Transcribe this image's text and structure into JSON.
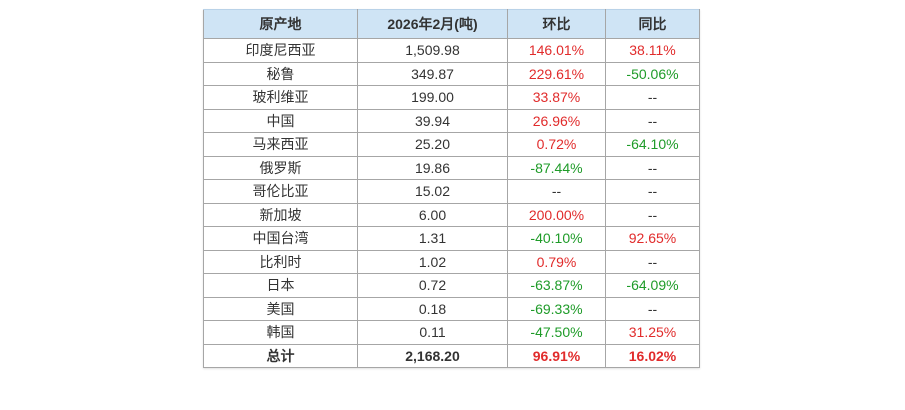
{
  "colors": {
    "header_bg": "#cfe4f5",
    "border": "#a6a6a6",
    "increase_red": "#e12b2b",
    "decrease_green": "#1e9b28",
    "text": "#333333",
    "page_bg": "#ffffff"
  },
  "chart_data": {
    "type": "table",
    "title": "",
    "columns": [
      "原产地",
      "2026年2月(吨)",
      "环比",
      "同比"
    ],
    "rows": [
      {
        "origin": "印度尼西亚",
        "amount": "1,509.98",
        "mom": "146.01%",
        "mom_trend": "up",
        "yoy": "38.11%",
        "yoy_trend": "up",
        "is_total": false
      },
      {
        "origin": "秘鲁",
        "amount": "349.87",
        "mom": "229.61%",
        "mom_trend": "up",
        "yoy": "-50.06%",
        "yoy_trend": "down",
        "is_total": false
      },
      {
        "origin": "玻利维亚",
        "amount": "199.00",
        "mom": "33.87%",
        "mom_trend": "up",
        "yoy": "--",
        "yoy_trend": "none",
        "is_total": false
      },
      {
        "origin": "中国",
        "amount": "39.94",
        "mom": "26.96%",
        "mom_trend": "up",
        "yoy": "--",
        "yoy_trend": "none",
        "is_total": false
      },
      {
        "origin": "马来西亚",
        "amount": "25.20",
        "mom": "0.72%",
        "mom_trend": "up",
        "yoy": "-64.10%",
        "yoy_trend": "down",
        "is_total": false
      },
      {
        "origin": "俄罗斯",
        "amount": "19.86",
        "mom": "-87.44%",
        "mom_trend": "down",
        "yoy": "--",
        "yoy_trend": "none",
        "is_total": false
      },
      {
        "origin": "哥伦比亚",
        "amount": "15.02",
        "mom": "--",
        "mom_trend": "none",
        "yoy": "--",
        "yoy_trend": "none",
        "is_total": false
      },
      {
        "origin": "新加坡",
        "amount": "6.00",
        "mom": "200.00%",
        "mom_trend": "up",
        "yoy": "--",
        "yoy_trend": "none",
        "is_total": false
      },
      {
        "origin": "中国台湾",
        "amount": "1.31",
        "mom": "-40.10%",
        "mom_trend": "down",
        "yoy": "92.65%",
        "yoy_trend": "up",
        "is_total": false
      },
      {
        "origin": "比利时",
        "amount": "1.02",
        "mom": "0.79%",
        "mom_trend": "up",
        "yoy": "--",
        "yoy_trend": "none",
        "is_total": false
      },
      {
        "origin": "日本",
        "amount": "0.72",
        "mom": "-63.87%",
        "mom_trend": "down",
        "yoy": "-64.09%",
        "yoy_trend": "down",
        "is_total": false
      },
      {
        "origin": "美国",
        "amount": "0.18",
        "mom": "-69.33%",
        "mom_trend": "down",
        "yoy": "--",
        "yoy_trend": "none",
        "is_total": false
      },
      {
        "origin": "韩国",
        "amount": "0.11",
        "mom": "-47.50%",
        "mom_trend": "down",
        "yoy": "31.25%",
        "yoy_trend": "up",
        "is_total": false
      },
      {
        "origin": "总计",
        "amount": "2,168.20",
        "mom": "96.91%",
        "mom_trend": "up",
        "yoy": "16.02%",
        "yoy_trend": "up",
        "is_total": true
      }
    ]
  }
}
